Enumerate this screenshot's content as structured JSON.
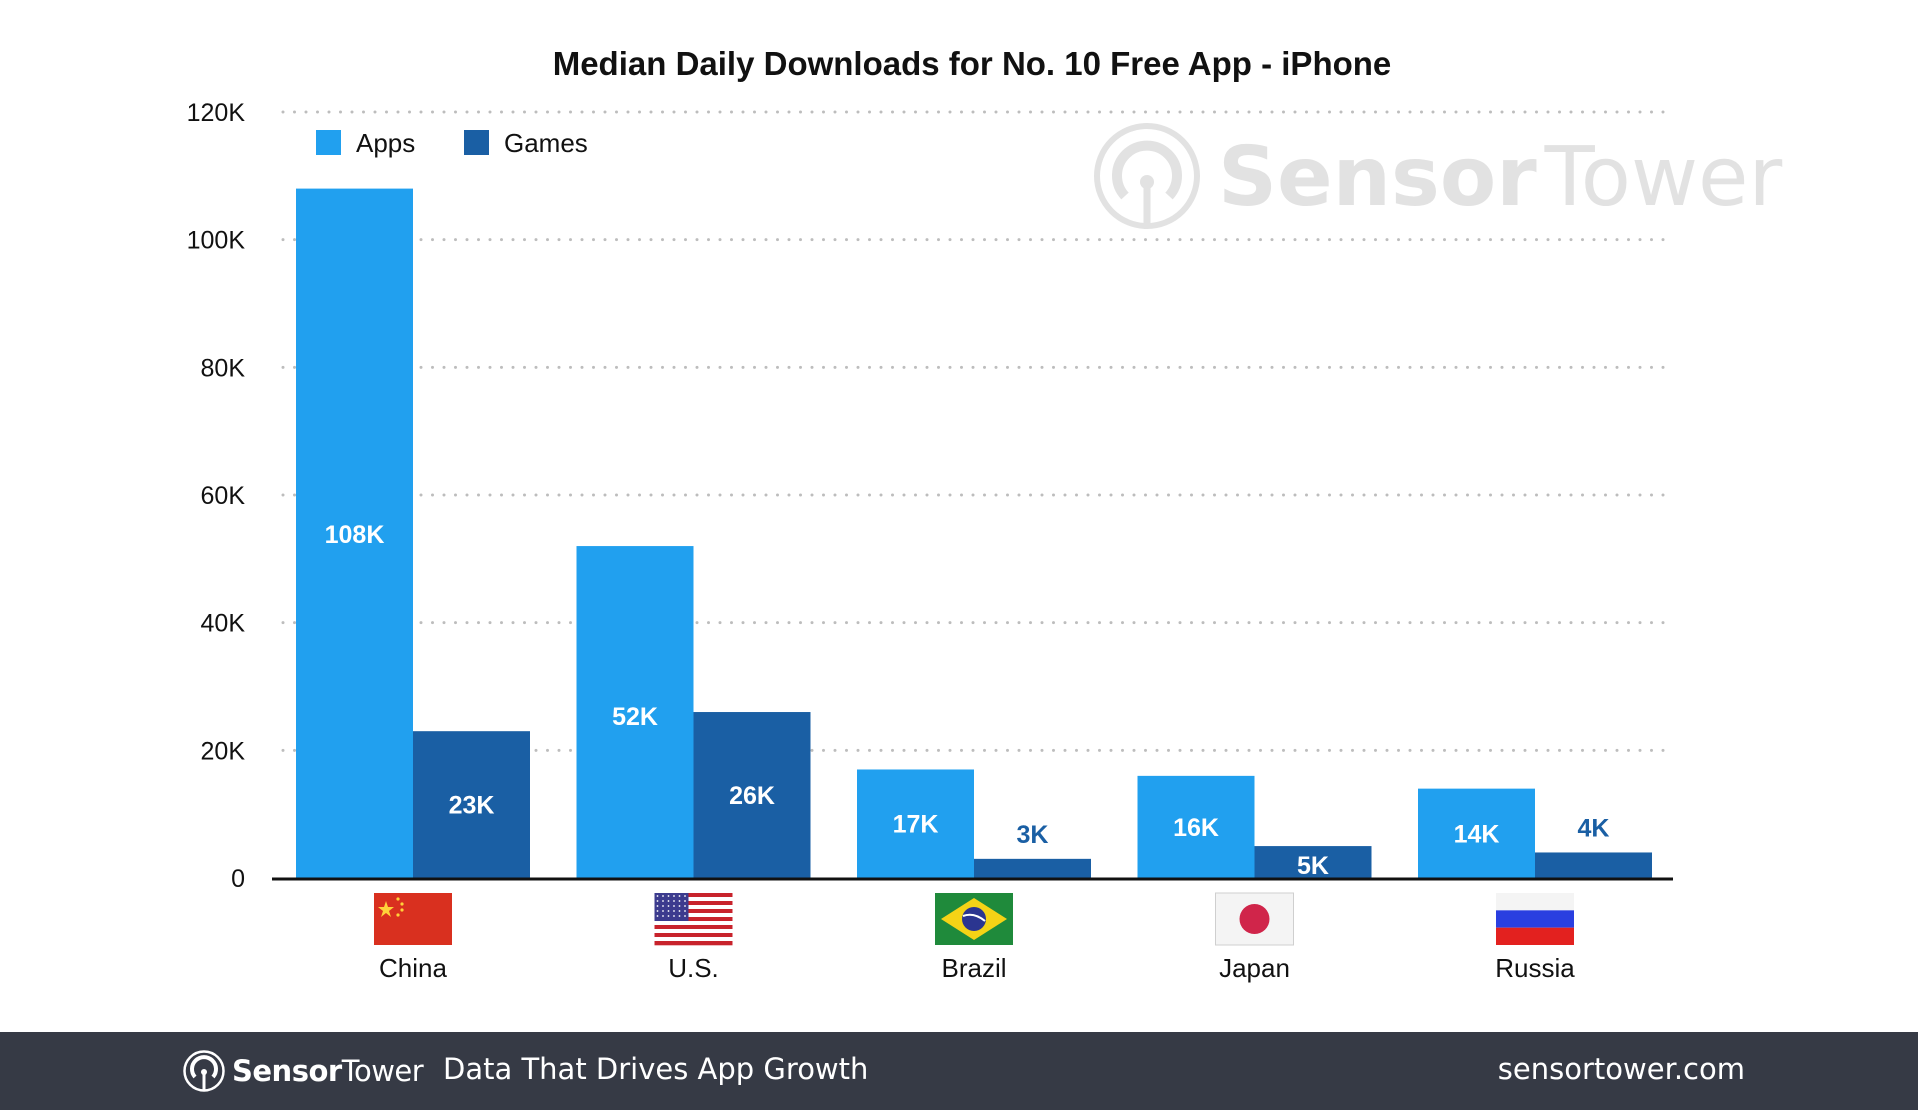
{
  "colors": {
    "apps": "#21a0ef",
    "games": "#1a5fa4",
    "footer_bg": "#363a45",
    "grid": "#bdbdbd"
  },
  "watermark": {
    "brand_bold": "Sensor",
    "brand_light": "Tower"
  },
  "footer": {
    "brand_bold": "Sensor",
    "brand_light": "Tower",
    "tagline": "Data That Drives App Growth",
    "url": "sensortower.com"
  },
  "flags": [
    "china-flag-icon",
    "us-flag-icon",
    "brazil-flag-icon",
    "japan-flag-icon",
    "russia-flag-icon"
  ],
  "chart_data": {
    "type": "bar",
    "title": "Median Daily Downloads for No. 10 Free App - iPhone",
    "xlabel": "",
    "ylabel": "",
    "categories": [
      "China",
      "U.S.",
      "Brazil",
      "Japan",
      "Russia"
    ],
    "series": [
      {
        "name": "Apps",
        "values": [
          108000,
          52000,
          17000,
          16000,
          14000
        ],
        "labels": [
          "108K",
          "52K",
          "17K",
          "16K",
          "14K"
        ]
      },
      {
        "name": "Games",
        "values": [
          23000,
          26000,
          3000,
          5000,
          4000
        ],
        "labels": [
          "23K",
          "26K",
          "3K",
          "5K",
          "4K"
        ]
      }
    ],
    "ylim": [
      0,
      120000
    ],
    "yticks": [
      0,
      20000,
      40000,
      60000,
      80000,
      100000,
      120000
    ],
    "ytick_labels": [
      "0",
      "20K",
      "40K",
      "60K",
      "80K",
      "100K",
      "120K"
    ],
    "grid": true,
    "legend": "top-left"
  }
}
